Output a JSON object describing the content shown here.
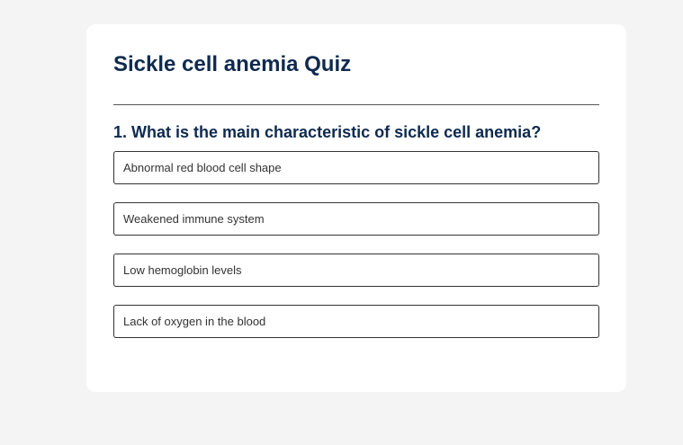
{
  "quiz": {
    "title": "Sickle cell anemia Quiz",
    "question": "1. What is the main characteristic of sickle cell anemia?",
    "options": [
      "Abnormal red blood cell shape",
      "Weakened immune system",
      "Low hemoglobin levels",
      "Lack of oxygen in the blood"
    ]
  },
  "colors": {
    "background": "#f4f4f4",
    "card": "#ffffff",
    "heading": "#0e2a4f",
    "option_border": "#333333"
  }
}
